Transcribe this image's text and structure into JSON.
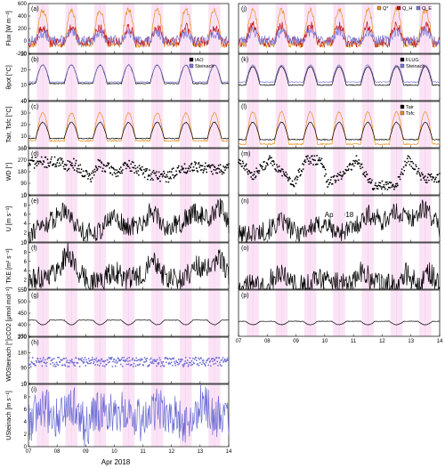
{
  "chart_data": [
    {
      "id": "a",
      "type": "line",
      "panel_label": "(a)",
      "ylabel": "Flux [W m⁻²]",
      "ylim": [
        -200,
        600
      ],
      "yticks": [
        "-200",
        "0",
        "200",
        "400",
        "600"
      ],
      "xlim": [
        7,
        14
      ],
      "series": [
        {
          "name": "Q*",
          "color": "#e8901e",
          "amp": 560,
          "base": -60,
          "noise": 0.06,
          "seed": 11
        },
        {
          "name": "Q_H",
          "color": "#c01818",
          "amp": 230,
          "base": -20,
          "noise": 0.1,
          "seed": 12
        },
        {
          "name": "Q_E",
          "color": "#7b7bd6",
          "amp": 110,
          "base": 10,
          "noise": 0.1,
          "seed": 13
        }
      ],
      "legend": null
    },
    {
      "id": "j",
      "type": "line",
      "panel_label": "(j)",
      "ylabel": "",
      "ylim": [
        -200,
        600
      ],
      "yticks": [],
      "xlim": [
        7,
        14
      ],
      "series": [
        {
          "name": "Q*",
          "color": "#e8901e",
          "amp": 560,
          "base": -60,
          "noise": 0.06,
          "seed": 21
        },
        {
          "name": "Q_H",
          "color": "#c01818",
          "amp": 260,
          "base": -20,
          "noise": 0.1,
          "seed": 22
        },
        {
          "name": "Q_E",
          "color": "#7b7bd6",
          "amp": 140,
          "base": 10,
          "noise": 0.1,
          "seed": 23
        }
      ],
      "legend": {
        "entries": [
          "Q*",
          "Q_H",
          "Q_E"
        ],
        "placement": "top-right",
        "horizontal": true
      }
    },
    {
      "id": "b",
      "type": "line",
      "panel_label": "(b)",
      "ylabel": "θpot [°C]",
      "ylim": [
        0,
        30
      ],
      "yticks": [
        "0",
        "10",
        "20",
        "30"
      ],
      "xlim": [
        7,
        14
      ],
      "series": [
        {
          "name": "IAO",
          "color": "#000000",
          "amp": 12,
          "base": 11,
          "noise": 0.01,
          "seed": 31
        },
        {
          "name": "Steinach",
          "color": "#7b7bd6",
          "amp": 11,
          "base": 12,
          "noise": 0.01,
          "seed": 32
        }
      ],
      "legend": {
        "entries": [
          "IAO",
          "Steinach"
        ],
        "placement": "top-right"
      }
    },
    {
      "id": "k",
      "type": "line",
      "panel_label": "(k)",
      "ylabel": "",
      "ylim": [
        0,
        30
      ],
      "yticks": [],
      "xlim": [
        7,
        14
      ],
      "series": [
        {
          "name": "FLUG",
          "color": "#000000",
          "amp": 12,
          "base": 10,
          "noise": 0.01,
          "seed": 41
        },
        {
          "name": "Steinach",
          "color": "#7b7bd6",
          "amp": 11,
          "base": 12,
          "noise": 0.01,
          "seed": 42
        }
      ],
      "legend": {
        "entries": [
          "FLUG",
          "Steinach"
        ],
        "placement": "top-right"
      }
    },
    {
      "id": "c",
      "type": "line",
      "panel_label": "(c)",
      "ylabel": "Tair, Tsfc [°C]",
      "ylim": [
        0,
        40
      ],
      "yticks": [
        "0",
        "10",
        "20",
        "30",
        "40"
      ],
      "xlim": [
        7,
        14
      ],
      "series": [
        {
          "name": "Tsfc",
          "color": "#e8901e",
          "amp": 24,
          "base": 6,
          "noise": 0.015,
          "seed": 51
        },
        {
          "name": "Tair",
          "color": "#000000",
          "amp": 14,
          "base": 8,
          "noise": 0.01,
          "seed": 52
        }
      ],
      "legend": null
    },
    {
      "id": "l",
      "type": "line",
      "panel_label": "(l)",
      "ylabel": "",
      "ylim": [
        0,
        40
      ],
      "yticks": [],
      "xlim": [
        7,
        14
      ],
      "series": [
        {
          "name": "Tsfc",
          "color": "#e8901e",
          "amp": 28,
          "base": 3,
          "noise": 0.015,
          "seed": 61
        },
        {
          "name": "Tair",
          "color": "#000000",
          "amp": 15,
          "base": 7,
          "noise": 0.01,
          "seed": 62
        }
      ],
      "legend": {
        "entries": [
          "Tair",
          "Tsfc"
        ],
        "placement": "top-right"
      }
    },
    {
      "id": "d",
      "type": "scatter",
      "panel_label": "(d)",
      "ylabel": "WD [°]",
      "ylim": [
        0,
        360
      ],
      "yticks": [
        "0",
        "90",
        "180",
        "270",
        "360"
      ],
      "xlim": [
        7,
        14
      ],
      "series": [
        {
          "name": "WD",
          "color": "#000000",
          "levels": [
            [
              7.0,
              250
            ],
            [
              8.0,
              255
            ],
            [
              8.35,
              230
            ],
            [
              8.55,
              245
            ],
            [
              9.2,
              130
            ],
            [
              9.45,
              240
            ],
            [
              10.1,
              175
            ],
            [
              10.5,
              230
            ],
            [
              11.2,
              160
            ],
            [
              11.9,
              140
            ],
            [
              12.1,
              175
            ],
            [
              12.8,
              230
            ],
            [
              13.3,
              200
            ],
            [
              14.0,
              200
            ]
          ],
          "noise": 0.12,
          "seed": 71
        }
      ],
      "legend": null
    },
    {
      "id": "m",
      "type": "scatter",
      "panel_label": "(m)",
      "ylabel": "",
      "ylim": [
        0,
        360
      ],
      "yticks": [],
      "xlim": [
        7,
        14
      ],
      "series": [
        {
          "name": "WD",
          "color": "#000000",
          "levels": [
            [
              7.0,
              270
            ],
            [
              7.5,
              150
            ],
            [
              8.1,
              270
            ],
            [
              8.9,
              80
            ],
            [
              9.35,
              270
            ],
            [
              9.9,
              270
            ],
            [
              10.1,
              90
            ],
            [
              10.6,
              150
            ],
            [
              11.1,
              270
            ],
            [
              11.7,
              70
            ],
            [
              12.5,
              80
            ],
            [
              12.9,
              280
            ],
            [
              13.4,
              130
            ],
            [
              14.0,
              130
            ]
          ],
          "noise": 0.1,
          "seed": 81
        }
      ],
      "legend": null
    },
    {
      "id": "e",
      "type": "line",
      "panel_label": "(e)",
      "ylabel": "U [m s⁻¹]",
      "ylim": [
        0,
        10
      ],
      "yticks": [
        "0",
        "2",
        "4",
        "6",
        "8",
        "10"
      ],
      "xlim": [
        7,
        14
      ],
      "series": [
        {
          "name": "U",
          "color": "#000000",
          "levels": [
            [
              7.0,
              2
            ],
            [
              7.5,
              3.5
            ],
            [
              7.9,
              5
            ],
            [
              8.3,
              7.5
            ],
            [
              8.6,
              4
            ],
            [
              9.0,
              2
            ],
            [
              9.5,
              2.5
            ],
            [
              10.0,
              6
            ],
            [
              10.4,
              3
            ],
            [
              11.0,
              4
            ],
            [
              11.3,
              7
            ],
            [
              11.8,
              3
            ],
            [
              12.3,
              4
            ],
            [
              12.8,
              6.5
            ],
            [
              13.3,
              5
            ],
            [
              13.7,
              7.5
            ],
            [
              14.0,
              4
            ]
          ],
          "noise": 0.22,
          "seed": 91
        }
      ],
      "legend": null
    },
    {
      "id": "n",
      "type": "line",
      "panel_label": "(n)",
      "ylabel": "",
      "ylim": [
        0,
        10
      ],
      "yticks": [],
      "xlim": [
        7,
        14
      ],
      "series": [
        {
          "name": "U",
          "color": "#000000",
          "levels": [
            [
              7.0,
              1.5
            ],
            [
              7.5,
              2
            ],
            [
              8.0,
              2.5
            ],
            [
              8.5,
              4.5
            ],
            [
              9.0,
              2
            ],
            [
              9.5,
              3
            ],
            [
              10.0,
              4
            ],
            [
              10.4,
              2
            ],
            [
              11.0,
              3
            ],
            [
              11.5,
              6
            ],
            [
              12.0,
              4.5
            ],
            [
              12.5,
              6.5
            ],
            [
              13.0,
              5
            ],
            [
              13.5,
              7.5
            ],
            [
              14.0,
              3
            ]
          ],
          "noise": 0.22,
          "seed": 101
        }
      ],
      "legend": null
    },
    {
      "id": "f",
      "type": "line",
      "panel_label": "(f)",
      "ylabel": "TKE [m² s⁻²]",
      "ylim": [
        0,
        10
      ],
      "yticks": [
        "0",
        "2",
        "4",
        "6",
        "8",
        "10"
      ],
      "xlim": [
        7,
        14
      ],
      "series": [
        {
          "name": "TKE",
          "color": "#000000",
          "levels": [
            [
              7.0,
              1.5
            ],
            [
              7.6,
              3
            ],
            [
              8.0,
              4
            ],
            [
              8.4,
              8
            ],
            [
              8.8,
              3
            ],
            [
              9.2,
              1.5
            ],
            [
              9.6,
              2
            ],
            [
              10.0,
              4
            ],
            [
              10.4,
              2
            ],
            [
              11.0,
              3
            ],
            [
              11.3,
              8
            ],
            [
              11.8,
              2
            ],
            [
              12.4,
              2
            ],
            [
              12.8,
              5
            ],
            [
              13.4,
              4
            ],
            [
              13.7,
              7
            ],
            [
              14.0,
              3
            ]
          ],
          "noise": 0.25,
          "seed": 111
        }
      ],
      "legend": null
    },
    {
      "id": "o",
      "type": "line",
      "panel_label": "(o)",
      "ylabel": "",
      "ylim": [
        0,
        10
      ],
      "yticks": [],
      "xlim": [
        7,
        14
      ],
      "series": [
        {
          "name": "TKE",
          "color": "#000000",
          "levels": [
            [
              7.0,
              0.5
            ],
            [
              7.4,
              1
            ],
            [
              7.8,
              0.5
            ],
            [
              8.3,
              3
            ],
            [
              8.7,
              3
            ],
            [
              9.0,
              0.8
            ],
            [
              9.5,
              1
            ],
            [
              9.9,
              2.5
            ],
            [
              10.5,
              1
            ],
            [
              11.0,
              1
            ],
            [
              11.3,
              4
            ],
            [
              11.8,
              1
            ],
            [
              12.5,
              1
            ],
            [
              12.8,
              3.5
            ],
            [
              13.3,
              1
            ],
            [
              13.6,
              4
            ],
            [
              14.0,
              1
            ]
          ],
          "noise": 0.25,
          "seed": 121
        }
      ],
      "legend": null
    },
    {
      "id": "g",
      "type": "line",
      "panel_label": "(g)",
      "ylabel": "cCO2 [μmol mol⁻¹]",
      "ylim": [
        350,
        550
      ],
      "yticks": [
        "350",
        "400",
        "450",
        "500",
        "550"
      ],
      "xlim": [
        7,
        14
      ],
      "series": [
        {
          "name": "cCO2",
          "color": "#000000",
          "amp": -20,
          "base": 420,
          "noise": 0.005,
          "seed": 131
        }
      ],
      "legend": null
    },
    {
      "id": "p",
      "type": "line",
      "panel_label": "(p)",
      "ylabel": "",
      "ylim": [
        350,
        550
      ],
      "yticks": [],
      "xlim": [
        7,
        14
      ],
      "series": [
        {
          "name": "cCO2",
          "color": "#000000",
          "amp": -15,
          "base": 415,
          "noise": 0.005,
          "seed": 141
        }
      ],
      "legend": null
    },
    {
      "id": "h",
      "type": "scatter",
      "panel_label": "(h)",
      "ylabel": "WDSteinach [°]",
      "ylim": [
        0,
        270
      ],
      "yticks": [
        "0",
        "90",
        "180",
        "270"
      ],
      "xlim": [
        7,
        14
      ],
      "series": [
        {
          "name": "WD Steinach",
          "color": "#6d6dd4",
          "levels": [
            [
              7.0,
              125
            ],
            [
              14.0,
              125
            ]
          ],
          "noise": 0.1,
          "seed": 151
        }
      ],
      "legend": null
    },
    {
      "id": "i",
      "type": "line",
      "panel_label": "(i)",
      "ylabel": "USteinach [m s⁻¹]",
      "ylim": [
        0,
        10
      ],
      "yticks": [
        "0",
        "2",
        "4",
        "6",
        "8",
        "10"
      ],
      "xlim": [
        7,
        14
      ],
      "series": [
        {
          "name": "U Steinach",
          "color": "#6d6dd4",
          "levels": [
            [
              7.0,
              4
            ],
            [
              7.5,
              6
            ],
            [
              8.0,
              5
            ],
            [
              8.5,
              7
            ],
            [
              9.0,
              3
            ],
            [
              9.5,
              6
            ],
            [
              10.0,
              5
            ],
            [
              10.5,
              6
            ],
            [
              11.0,
              4
            ],
            [
              11.5,
              6
            ],
            [
              12.0,
              5
            ],
            [
              12.5,
              4
            ],
            [
              13.0,
              7
            ],
            [
              13.5,
              5
            ],
            [
              14.0,
              4
            ]
          ],
          "noise": 0.35,
          "seed": 161
        }
      ],
      "legend": null
    }
  ],
  "x_tick_labels": [
    "07",
    "08",
    "09",
    "10",
    "11",
    "12",
    "13",
    "14"
  ],
  "x_axis_title": "Apr 2018",
  "daytime_shading_color": "#fbe3f6",
  "day_grid_color": "#f3c9ee"
}
